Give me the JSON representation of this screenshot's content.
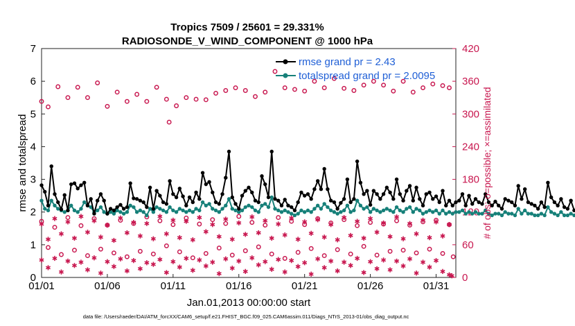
{
  "chart_data": {
    "type": "line",
    "title": "Tropics 7509 / 25601 = 29.331%",
    "subtitle": "RADIOSONDE_V_WIND_COMPONENT @ 1000 hPa",
    "xlabel": "Jan.01,2013 00:00:00 start",
    "ylabel": "rmse and totalspread",
    "ylabel_right": "# of obs: o=possible; ×=assimilated",
    "footnote": "data file: /Users/raeder/DAI/ATM_forcXX/CAM6_setup/f.e21.FHIST_BGC.f09_025.CAM6assim.011/Diags_NTrS_2013-01/obs_diag_output.nc",
    "xlim": [
      0,
      31.5
    ],
    "ylim": [
      0,
      7
    ],
    "ylim_right": [
      0,
      420
    ],
    "x_ticks": [
      0,
      5,
      10,
      15,
      20,
      25,
      30
    ],
    "x_tick_labels": [
      "01/01",
      "01/06",
      "01/11",
      "01/16",
      "01/21",
      "01/26",
      "01/31"
    ],
    "y_ticks": [
      0,
      1,
      2,
      3,
      4,
      5,
      6,
      7
    ],
    "y_tick_labels": [
      "0",
      "1",
      "2",
      "3",
      "4",
      "5",
      "6",
      "7"
    ],
    "y_right_ticks": [
      0,
      60,
      120,
      180,
      240,
      300,
      360,
      420
    ],
    "y_right_tick_labels": [
      "0",
      "60",
      "120",
      "180",
      "240",
      "300",
      "360",
      "420"
    ],
    "legend_position": "top-right",
    "series": [
      {
        "name": "rmse",
        "legend": "rmse grand pr = 2.43",
        "color": "#000000",
        "axis": "left",
        "step": 0.25,
        "values": [
          2.82,
          2.62,
          2.2,
          3.4,
          2.55,
          2.3,
          2.08,
          2.52,
          2.05,
          2.85,
          2.88,
          2.72,
          2.82,
          2.9,
          2.2,
          2.4,
          1.95,
          2.35,
          2.55,
          2.35,
          1.95,
          2.1,
          2.05,
          2.15,
          2.22,
          2.1,
          2.15,
          2.88,
          2.42,
          2.4,
          2.35,
          2.3,
          2.15,
          2.75,
          2.1,
          2.65,
          2.5,
          2.3,
          2.25,
          2.95,
          2.55,
          2.45,
          2.72,
          2.48,
          2.2,
          2.45,
          2.3,
          2.6,
          2.4,
          3.2,
          2.85,
          2.92,
          2.6,
          2.3,
          2.25,
          2.55,
          3.05,
          3.85,
          2.45,
          2.25,
          2.1,
          2.5,
          2.65,
          2.75,
          2.6,
          2.35,
          2.3,
          3.1,
          2.85,
          2.45,
          3.85,
          2.4,
          2.35,
          2.2,
          2.38,
          2.2,
          2.15,
          2.05,
          2.3,
          2.6,
          2.5,
          2.55,
          2.4,
          2.7,
          2.95,
          2.7,
          3.32,
          2.7,
          2.35,
          2.3,
          2.1,
          2.28,
          2.4,
          3.0,
          2.3,
          2.4,
          3.55,
          2.9,
          2.55,
          2.65,
          2.22,
          2.65,
          2.55,
          2.4,
          2.55,
          2.75,
          2.6,
          2.4,
          3.0,
          2.55,
          2.35,
          2.65,
          2.8,
          2.35,
          2.75,
          2.4,
          2.2,
          2.55,
          2.6,
          2.4,
          2.48,
          2.3,
          2.65,
          2.2,
          2.35,
          2.2,
          2.3,
          2.35,
          2.55,
          2.2,
          2.5,
          2.25,
          2.4,
          2.3,
          2.25,
          2.55,
          2.3,
          2.2,
          2.32,
          2.2,
          2.1,
          2.4,
          2.35,
          2.3,
          2.2,
          2.8,
          2.4,
          2.7,
          2.3,
          2.25,
          2.2,
          2.1,
          2.3,
          2.15,
          2.9,
          2.45,
          2.3,
          2.2,
          2.4,
          2.15,
          2.1,
          2.35,
          2.05,
          2.1,
          2.3,
          2.05,
          1.8,
          1.65
        ]
      },
      {
        "name": "totalspread",
        "legend": "totalspread grand pr = 2.0095",
        "color": "#168079",
        "axis": "left",
        "step": 0.25,
        "values": [
          2.35,
          2.1,
          2.05,
          2.35,
          2.2,
          2.1,
          2.05,
          2.0,
          2.05,
          2.2,
          2.05,
          2.0,
          2.1,
          2.3,
          2.2,
          2.15,
          2.0,
          2.05,
          2.15,
          2.0,
          1.95,
          2.0,
          1.95,
          2.05,
          2.0,
          1.95,
          2.0,
          2.2,
          2.15,
          2.0,
          2.05,
          2.0,
          1.9,
          2.1,
          2.0,
          2.15,
          2.1,
          2.05,
          2.0,
          2.15,
          2.05,
          2.0,
          2.1,
          2.05,
          2.0,
          2.05,
          2.0,
          2.1,
          2.05,
          2.3,
          2.2,
          2.25,
          2.1,
          2.05,
          2.0,
          2.1,
          2.2,
          2.4,
          2.1,
          2.05,
          2.0,
          2.05,
          2.15,
          2.2,
          2.15,
          2.05,
          2.0,
          2.2,
          2.25,
          2.15,
          2.45,
          2.1,
          2.05,
          2.0,
          2.05,
          2.0,
          1.95,
          1.9,
          1.95,
          2.05,
          2.0,
          2.05,
          2.0,
          2.1,
          2.2,
          2.1,
          2.25,
          2.15,
          2.05,
          2.0,
          1.95,
          2.0,
          2.05,
          2.2,
          2.0,
          2.05,
          2.35,
          2.2,
          2.1,
          2.15,
          2.0,
          2.1,
          2.05,
          2.0,
          2.05,
          2.1,
          2.05,
          2.0,
          2.15,
          2.05,
          2.0,
          2.1,
          2.15,
          2.0,
          2.1,
          2.05,
          1.95,
          2.0,
          2.05,
          2.0,
          2.05,
          1.95,
          2.05,
          1.95,
          2.0,
          1.95,
          2.0,
          2.0,
          2.05,
          1.95,
          2.0,
          1.95,
          2.0,
          1.95,
          1.95,
          2.05,
          1.95,
          1.9,
          1.95,
          1.95,
          1.9,
          2.0,
          1.95,
          1.95,
          1.9,
          2.1,
          1.95,
          2.05,
          1.95,
          1.95,
          1.9,
          1.9,
          1.95,
          1.9,
          2.15,
          2.0,
          1.95,
          1.9,
          2.0,
          1.9,
          1.9,
          1.95,
          1.9,
          1.9,
          1.95,
          1.9,
          1.95,
          1.95
        ]
      },
      {
        "name": "obs possible",
        "marker": "circle",
        "color": "#c8174f",
        "axis": "right",
        "x": [
          0.0,
          0.5,
          1.25,
          2.0,
          2.75,
          3.5,
          4.25,
          5.0,
          5.75,
          6.5,
          7.25,
          8.0,
          8.75,
          9.5,
          10.25,
          11.0,
          11.75,
          12.5,
          13.25,
          14.0,
          14.75,
          15.5,
          16.25,
          17.0,
          17.75,
          18.5,
          19.25,
          20.0,
          20.75,
          21.5,
          22.25,
          23.0,
          23.75,
          24.5,
          25.25,
          26.0,
          26.75,
          27.5,
          28.25,
          29.0,
          29.75,
          30.5,
          31.0,
          0.0,
          1.0,
          2.0,
          3.0,
          4.0,
          5.0,
          6.0,
          7.0,
          8.0,
          9.0,
          10.0,
          11.0,
          12.0,
          13.0,
          14.0,
          15.0,
          16.0,
          17.0,
          18.0,
          19.0,
          20.0,
          21.0,
          22.0,
          23.0,
          24.0,
          25.0,
          26.0,
          27.0,
          28.0,
          29.0,
          30.0,
          31.0,
          9.7,
          0.5,
          1.5,
          2.5,
          3.5,
          4.5,
          5.5,
          6.5,
          7.5,
          8.5,
          9.5,
          10.5,
          11.5,
          12.5,
          13.5,
          14.5,
          15.5,
          16.5,
          17.5,
          18.5,
          19.5,
          20.5,
          21.5,
          22.5,
          23.5,
          24.5,
          25.5,
          26.5,
          27.5,
          28.5,
          29.5,
          30.5,
          31.3
        ],
        "values": [
          323,
          313,
          350,
          330,
          349,
          330,
          357,
          314,
          340,
          323,
          336,
          323,
          349,
          327,
          315,
          330,
          327,
          326,
          338,
          343,
          348,
          343,
          332,
          340,
          378,
          348,
          345,
          342,
          360,
          348,
          365,
          347,
          343,
          353,
          360,
          353,
          342,
          360,
          340,
          348,
          355,
          352,
          348,
          103,
          92,
          110,
          95,
          108,
          96,
          105,
          99,
          111,
          104,
          97,
          109,
          98,
          106,
          99,
          112,
          101,
          96,
          110,
          103,
          97,
          108,
          100,
          106,
          95,
          101,
          98,
          104,
          96,
          102,
          105,
          97,
          285,
          55,
          42,
          50,
          40,
          52,
          45,
          38,
          48,
          43,
          58,
          47,
          36,
          44,
          54,
          41,
          49,
          56,
          43,
          35,
          46,
          53,
          40,
          51,
          43,
          57,
          41,
          48,
          50,
          45,
          52,
          44,
          38
        ]
      },
      {
        "name": "obs assimilated",
        "marker": "asterisk",
        "color": "#c8174f",
        "axis": "right",
        "x": [
          0.0,
          1.0,
          2.0,
          3.0,
          4.0,
          5.0,
          6.0,
          7.0,
          8.0,
          9.0,
          10.0,
          11.0,
          12.0,
          13.0,
          14.0,
          15.0,
          16.0,
          17.0,
          18.0,
          19.0,
          20.0,
          21.0,
          22.0,
          23.0,
          24.0,
          25.0,
          26.0,
          27.0,
          28.0,
          29.0,
          30.0,
          31.0,
          0.5,
          1.5,
          2.5,
          3.5,
          4.5,
          5.5,
          6.5,
          7.5,
          8.5,
          9.5,
          10.5,
          11.5,
          12.5,
          13.5,
          14.5,
          15.5,
          16.5,
          17.5,
          18.5,
          19.5,
          20.5,
          21.5,
          22.5,
          23.5,
          24.5,
          25.5,
          26.5,
          27.5,
          28.5,
          29.5,
          30.5,
          0.0,
          1.0,
          2.0,
          3.0,
          4.0,
          5.0,
          6.0,
          7.0,
          8.0,
          9.0,
          10.0,
          11.0,
          12.0,
          13.0,
          14.0,
          15.0,
          16.0,
          17.0,
          18.0,
          19.0,
          20.0,
          21.0,
          22.0,
          23.0,
          24.0,
          25.0,
          26.0,
          27.0,
          28.0,
          29.0,
          30.0,
          31.0,
          0.5,
          1.5,
          2.5,
          3.5,
          4.5,
          5.5,
          6.5,
          7.5,
          8.5,
          9.5,
          10.5,
          11.5,
          12.5,
          13.5,
          14.5,
          15.5,
          16.5,
          17.5,
          18.5,
          19.5,
          20.5,
          21.5,
          22.5,
          23.5,
          24.5,
          25.5,
          26.5,
          27.5,
          28.5,
          29.5,
          30.5,
          31.2
        ],
        "values": [
          98,
          108,
          102,
          112,
          104,
          96,
          109,
          101,
          99,
          112,
          105,
          103,
          110,
          97,
          107,
          100,
          111,
          104,
          98,
          109,
          102,
          106,
          97,
          110,
          103,
          108,
          100,
          111,
          99,
          105,
          102,
          97,
          70,
          80,
          72,
          83,
          74,
          68,
          82,
          76,
          71,
          80,
          73,
          69,
          84,
          75,
          70,
          79,
          82,
          72,
          78,
          70,
          81,
          74,
          69,
          77,
          72,
          83,
          75,
          71,
          80,
          73,
          76,
          32,
          35,
          30,
          28,
          36,
          29,
          34,
          31,
          27,
          33,
          29,
          35,
          32,
          28,
          34,
          30,
          36,
          29,
          33,
          31,
          27,
          34,
          30,
          28,
          35,
          29,
          32,
          30,
          34,
          28,
          31,
          5,
          18,
          10,
          22,
          14,
          8,
          20,
          12,
          16,
          24,
          9,
          19,
          13,
          21,
          7,
          17,
          11,
          23,
          15,
          10,
          20,
          6,
          18,
          12,
          22,
          9,
          16,
          14,
          21,
          8,
          19,
          11,
          3
        ]
      }
    ]
  }
}
